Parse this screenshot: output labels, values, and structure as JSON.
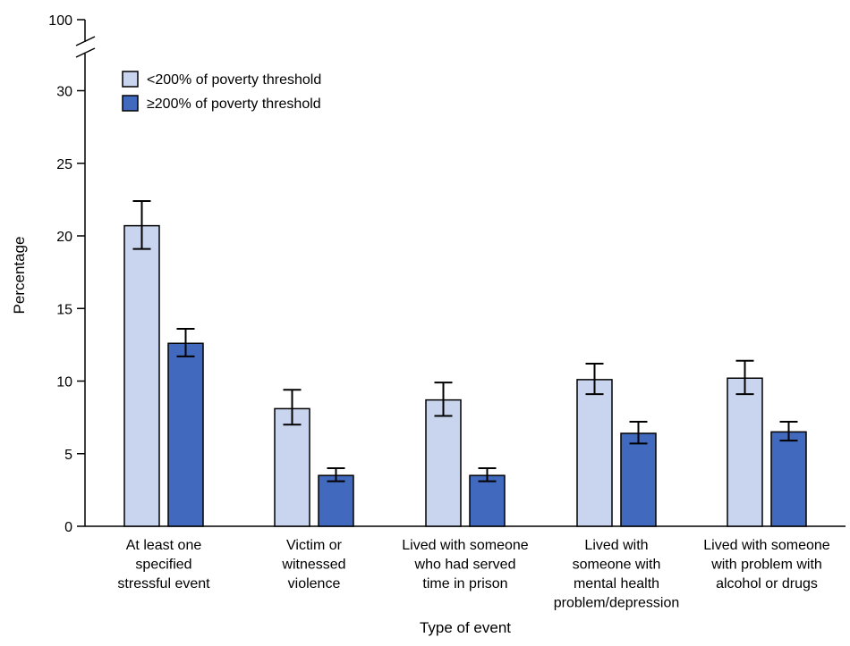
{
  "chart_data": {
    "type": "bar",
    "xlabel": "Type of event",
    "ylabel": "Percentage",
    "ylim": [
      0,
      30
    ],
    "y_break_top_tick": "100",
    "yticks": [
      "0",
      "5",
      "10",
      "15",
      "20",
      "25",
      "30"
    ],
    "grid": false,
    "legend_position": "top-left",
    "categories": [
      [
        "At least one",
        "specified",
        "stressful event"
      ],
      [
        "Victim or",
        "witnessed",
        "violence"
      ],
      [
        "Lived with someone",
        "who had served",
        "time in prison"
      ],
      [
        "Lived with",
        "someone with",
        "mental health",
        "problem/depression"
      ],
      [
        "Lived with someone",
        "with problem with",
        "alcohol or drugs"
      ]
    ],
    "series": [
      {
        "name": "<200% of poverty threshold",
        "color": "#c9d5ef",
        "values": [
          20.7,
          8.1,
          8.7,
          10.1,
          10.2
        ],
        "ci_low": [
          19.1,
          7.0,
          7.6,
          9.1,
          9.1
        ],
        "ci_high": [
          22.4,
          9.4,
          9.9,
          11.2,
          11.4
        ]
      },
      {
        "name": "≥200% of poverty threshold",
        "color": "#4169be",
        "values": [
          12.6,
          3.5,
          3.5,
          6.4,
          6.5
        ],
        "ci_low": [
          11.7,
          3.1,
          3.1,
          5.7,
          5.9
        ],
        "ci_high": [
          13.6,
          4.0,
          4.0,
          7.2,
          7.2
        ]
      }
    ]
  }
}
